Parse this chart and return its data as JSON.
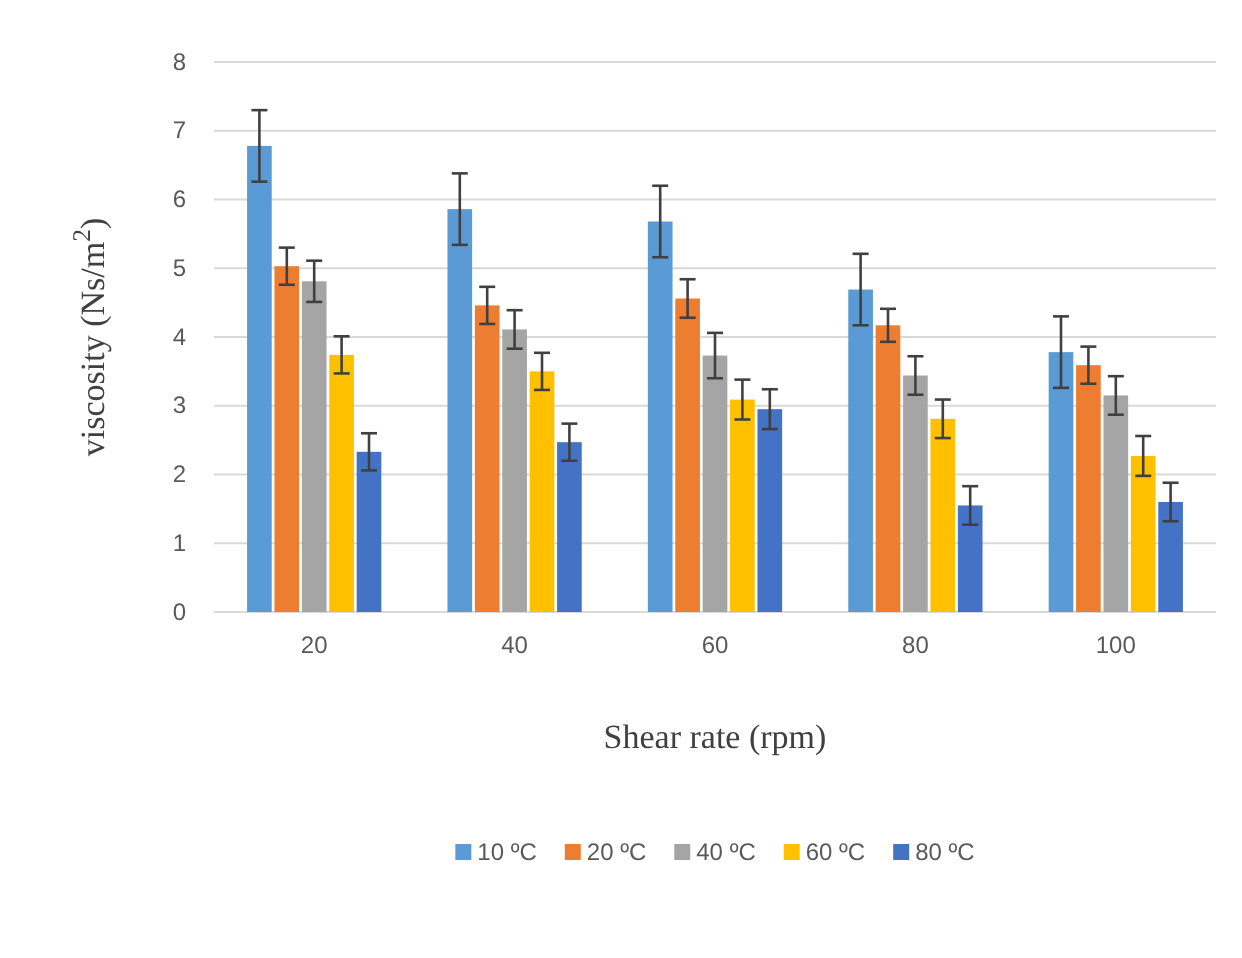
{
  "chart_data": {
    "type": "bar",
    "xlabel": "Shear rate (rpm)",
    "ylabel": "viscosity  (Ns/m$^{2}$)",
    "categories": [
      "20",
      "40",
      "60",
      "80",
      "100"
    ],
    "series": [
      {
        "name": "10 ºC",
        "color": "#5b9bd5",
        "values": [
          6.78,
          5.86,
          5.68,
          4.69,
          3.78
        ],
        "errors": [
          0.52,
          0.52,
          0.52,
          0.52,
          0.52
        ]
      },
      {
        "name": "20 ºC",
        "color": "#ed7d31",
        "values": [
          5.03,
          4.46,
          4.56,
          4.17,
          3.59
        ],
        "errors": [
          0.27,
          0.27,
          0.28,
          0.24,
          0.27
        ]
      },
      {
        "name": "40 ºC",
        "color": "#a5a5a5",
        "values": [
          4.81,
          4.11,
          3.73,
          3.44,
          3.15
        ],
        "errors": [
          0.3,
          0.28,
          0.33,
          0.28,
          0.28
        ]
      },
      {
        "name": "60 ºC",
        "color": "#ffc000",
        "values": [
          3.74,
          3.5,
          3.09,
          2.81,
          2.27
        ],
        "errors": [
          0.27,
          0.27,
          0.29,
          0.28,
          0.29
        ]
      },
      {
        "name": "80 ºC",
        "color": "#4472c4",
        "values": [
          2.33,
          2.47,
          2.95,
          1.55,
          1.6
        ],
        "errors": [
          0.27,
          0.27,
          0.29,
          0.28,
          0.28
        ]
      }
    ],
    "ylim": [
      0,
      8
    ],
    "yticks": [
      0,
      1,
      2,
      3,
      4,
      5,
      6,
      7,
      8
    ],
    "grid": "y",
    "legend": "bottom"
  }
}
